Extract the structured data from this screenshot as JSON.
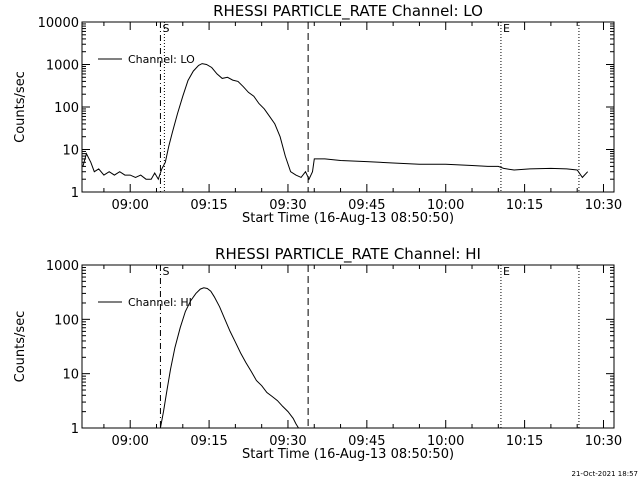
{
  "footer": {
    "timestamp": "21-Oct-2021 18:57"
  },
  "chart_data": [
    {
      "type": "line",
      "title": "RHESSI PARTICLE_RATE Channel: LO",
      "xlabel": "Start Time (16-Aug-13 08:50:50)",
      "ylabel": "Counts/sec",
      "yscale": "log",
      "xlim": [
        "08:50:50",
        "10:32:00"
      ],
      "ylim": [
        1,
        10000
      ],
      "xticks": [
        "09:00",
        "09:15",
        "09:30",
        "09:45",
        "10:00",
        "10:15",
        "10:30"
      ],
      "yticks": [
        "1",
        "10",
        "100",
        "1000",
        "10000"
      ],
      "legend": {
        "position": "top-left",
        "entries": [
          "Channel: LO"
        ]
      },
      "markers": [
        {
          "time": "09:05:45",
          "style": "dash-dot",
          "label": "S"
        },
        {
          "time": "09:06:30",
          "style": "dotted",
          "label": ""
        },
        {
          "time": "09:33:50",
          "style": "dashed",
          "label": ""
        },
        {
          "time": "10:10:30",
          "style": "dotted",
          "label": "E"
        },
        {
          "time": "10:25:20",
          "style": "dotted",
          "label": ""
        }
      ],
      "series": [
        {
          "x": [
            "08:51:00",
            "08:51:40",
            "08:52:30",
            "08:53:10",
            "08:54:00",
            "08:55:00",
            "08:56:00",
            "08:57:00",
            "08:58:00",
            "08:59:00",
            "09:00:00",
            "09:01:00",
            "09:02:00",
            "09:03:00",
            "09:04:00",
            "09:04:40",
            "09:05:20",
            "09:06:00",
            "09:06:40",
            "09:07:20",
            "09:08:00",
            "09:09:00",
            "09:10:00",
            "09:11:00",
            "09:12:00",
            "09:13:00",
            "09:13:40",
            "09:14:30",
            "09:15:30",
            "09:16:30",
            "09:17:30",
            "09:18:30",
            "09:19:30",
            "09:20:30",
            "09:21:30",
            "09:22:30",
            "09:23:30",
            "09:24:30",
            "09:25:30",
            "09:26:30",
            "09:27:30",
            "09:28:30",
            "09:29:30",
            "09:30:30",
            "09:31:30",
            "09:32:30",
            "09:33:20",
            "09:34:00",
            "09:34:40",
            "09:35:00",
            "09:37:00",
            "09:40:00",
            "09:45:00",
            "09:50:00",
            "09:55:00",
            "10:00:00",
            "10:05:00",
            "10:08:00",
            "10:10:00",
            "10:11:00",
            "10:13:00",
            "10:16:00",
            "10:20:00",
            "10:23:00",
            "10:25:00",
            "10:26:00",
            "10:27:00"
          ],
          "y": [
            4,
            8,
            5,
            3,
            3.5,
            2.5,
            3,
            2.5,
            3,
            2.5,
            2.5,
            2.2,
            2.5,
            2,
            2,
            2.8,
            2,
            3.5,
            5,
            12,
            25,
            70,
            180,
            420,
            700,
            950,
            1050,
            1000,
            850,
            600,
            470,
            500,
            430,
            400,
            300,
            220,
            180,
            120,
            90,
            60,
            40,
            20,
            7,
            3,
            2.5,
            2.2,
            3,
            2,
            3,
            6,
            6,
            5.5,
            5.2,
            4.8,
            4.5,
            4.5,
            4.2,
            4.0,
            4.0,
            3.6,
            3.3,
            3.5,
            3.6,
            3.5,
            3.3,
            2.2,
            3.0
          ]
        }
      ]
    },
    {
      "type": "line",
      "title": "RHESSI PARTICLE_RATE Channel: HI",
      "xlabel": "Start Time (16-Aug-13 08:50:50)",
      "ylabel": "Counts/sec",
      "yscale": "log",
      "xlim": [
        "08:50:50",
        "10:32:00"
      ],
      "ylim": [
        1,
        1000
      ],
      "xticks": [
        "09:00",
        "09:15",
        "09:30",
        "09:45",
        "10:00",
        "10:15",
        "10:30"
      ],
      "yticks": [
        "1",
        "10",
        "100",
        "1000"
      ],
      "legend": {
        "position": "top-left",
        "entries": [
          "Channel: HI"
        ]
      },
      "markers": [
        {
          "time": "09:05:45",
          "style": "dash-dot",
          "label": "S"
        },
        {
          "time": "09:33:50",
          "style": "dashed",
          "label": ""
        },
        {
          "time": "10:10:30",
          "style": "dotted",
          "label": "E"
        },
        {
          "time": "10:25:20",
          "style": "dotted",
          "label": ""
        }
      ],
      "series": [
        {
          "x": [
            "09:05:45",
            "09:06:20",
            "09:07:00",
            "09:07:40",
            "09:08:30",
            "09:09:30",
            "09:10:30",
            "09:11:30",
            "09:12:30",
            "09:13:20",
            "09:14:00",
            "09:14:40",
            "09:15:20",
            "09:16:00",
            "09:17:00",
            "09:18:00",
            "09:19:00",
            "09:20:00",
            "09:21:00",
            "09:22:00",
            "09:23:00",
            "09:24:00",
            "09:25:00",
            "09:26:00",
            "09:27:00",
            "09:28:00",
            "09:29:00",
            "09:30:00",
            "09:31:00",
            "09:31:30",
            "09:32:00"
          ],
          "y": [
            1,
            2,
            5,
            12,
            30,
            70,
            140,
            220,
            300,
            360,
            380,
            370,
            330,
            260,
            170,
            100,
            60,
            38,
            24,
            16,
            11,
            7.5,
            6,
            4.5,
            3.8,
            3.2,
            2.5,
            2,
            1.5,
            1.2,
            1
          ]
        }
      ]
    }
  ]
}
